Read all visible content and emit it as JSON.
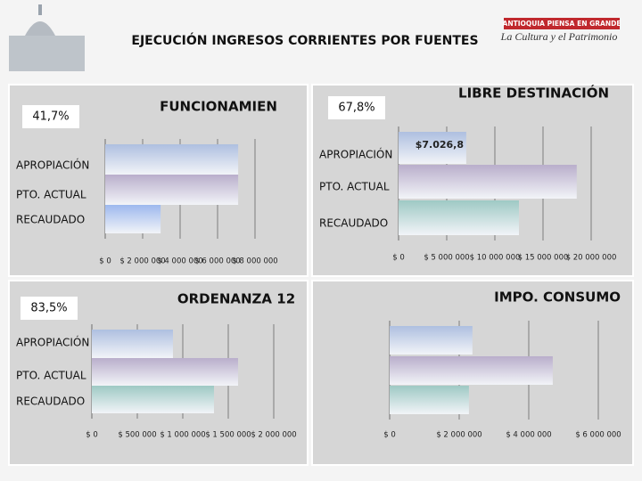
{
  "header": {
    "title": "EJECUCIÓN INGRESOS  CORRIENTES POR FUENTES",
    "logo_line1": "ANTIOQUIA PIENSA EN GRANDE",
    "logo_line2": "La Cultura y el Patrimonio"
  },
  "chart_data": [
    {
      "type": "bar",
      "orientation": "horizontal",
      "title": "FUNCIONAMIEN",
      "annotation": "41,7%",
      "categories": [
        "APROPIACIÓN",
        "PTO. ACTUAL",
        "RECAUDADO"
      ],
      "values": [
        7100000,
        7100000,
        2960000
      ],
      "colors": [
        "#aebfe0",
        "#b9aecb",
        "#9db8ee"
      ],
      "xlim": [
        0,
        8000000
      ],
      "xticks": [
        {
          "value": 0,
          "label": "$ 0"
        },
        {
          "value": 2000000,
          "label": "$ 2 000 000"
        },
        {
          "value": 4000000,
          "label": "$ 4 000 000"
        },
        {
          "value": 6000000,
          "label": "$ 6 000 000"
        },
        {
          "value": 8000000,
          "label": "$ 8 000 000"
        }
      ],
      "grid": true
    },
    {
      "type": "bar",
      "orientation": "horizontal",
      "title": "LIBRE DESTINACIÓN",
      "annotation": "67,8%",
      "categories": [
        "APROPIACIÓN",
        "PTO. ACTUAL",
        "RECAUDADO"
      ],
      "values": [
        7026800,
        18500000,
        12500000
      ],
      "value_labels": [
        "$7.026,8",
        null,
        null
      ],
      "colors": [
        "#aebfe0",
        "#b9aecb",
        "#9ec9c4"
      ],
      "xlim": [
        0,
        20000000
      ],
      "xticks": [
        {
          "value": 0,
          "label": "$ 0"
        },
        {
          "value": 5000000,
          "label": "$ 5 000 000"
        },
        {
          "value": 10000000,
          "label": "$ 10 000 000"
        },
        {
          "value": 15000000,
          "label": "$ 15 000 000"
        },
        {
          "value": 20000000,
          "label": "$ 20 000 000"
        }
      ],
      "grid": true
    },
    {
      "type": "bar",
      "orientation": "horizontal",
      "title": "ORDENANZA 12",
      "annotation": "83,5%",
      "categories": [
        "APROPIACIÓN",
        "PTO. ACTUAL",
        "RECAUDADO"
      ],
      "values": [
        892000,
        1608000,
        1343000
      ],
      "colors": [
        "#aebfe0",
        "#b9aecb",
        "#9ec9c4"
      ],
      "xlim": [
        0,
        2000000
      ],
      "xticks": [
        {
          "value": 0,
          "label": "$ 0"
        },
        {
          "value": 500000,
          "label": "$ 500 000"
        },
        {
          "value": 1000000,
          "label": "$ 1 000 000"
        },
        {
          "value": 1500000,
          "label": "$ 1 500 000"
        },
        {
          "value": 2000000,
          "label": "$ 2 000 000"
        }
      ],
      "grid": true
    },
    {
      "type": "bar",
      "orientation": "horizontal",
      "title": "IMPO. CONSUMO",
      "categories": [
        null,
        null,
        null
      ],
      "values": [
        2380000,
        4690000,
        2280000
      ],
      "colors": [
        "#aebfe0",
        "#b9aecb",
        "#9ec9c4"
      ],
      "xlim": [
        0,
        6000000
      ],
      "xticks": [
        {
          "value": 0,
          "label": "$ 0"
        },
        {
          "value": 2000000,
          "label": "$ 2 000 000"
        },
        {
          "value": 4000000,
          "label": "$ 4 000 000"
        },
        {
          "value": 6000000,
          "label": "$ 6 000 000"
        }
      ],
      "grid": true
    }
  ]
}
